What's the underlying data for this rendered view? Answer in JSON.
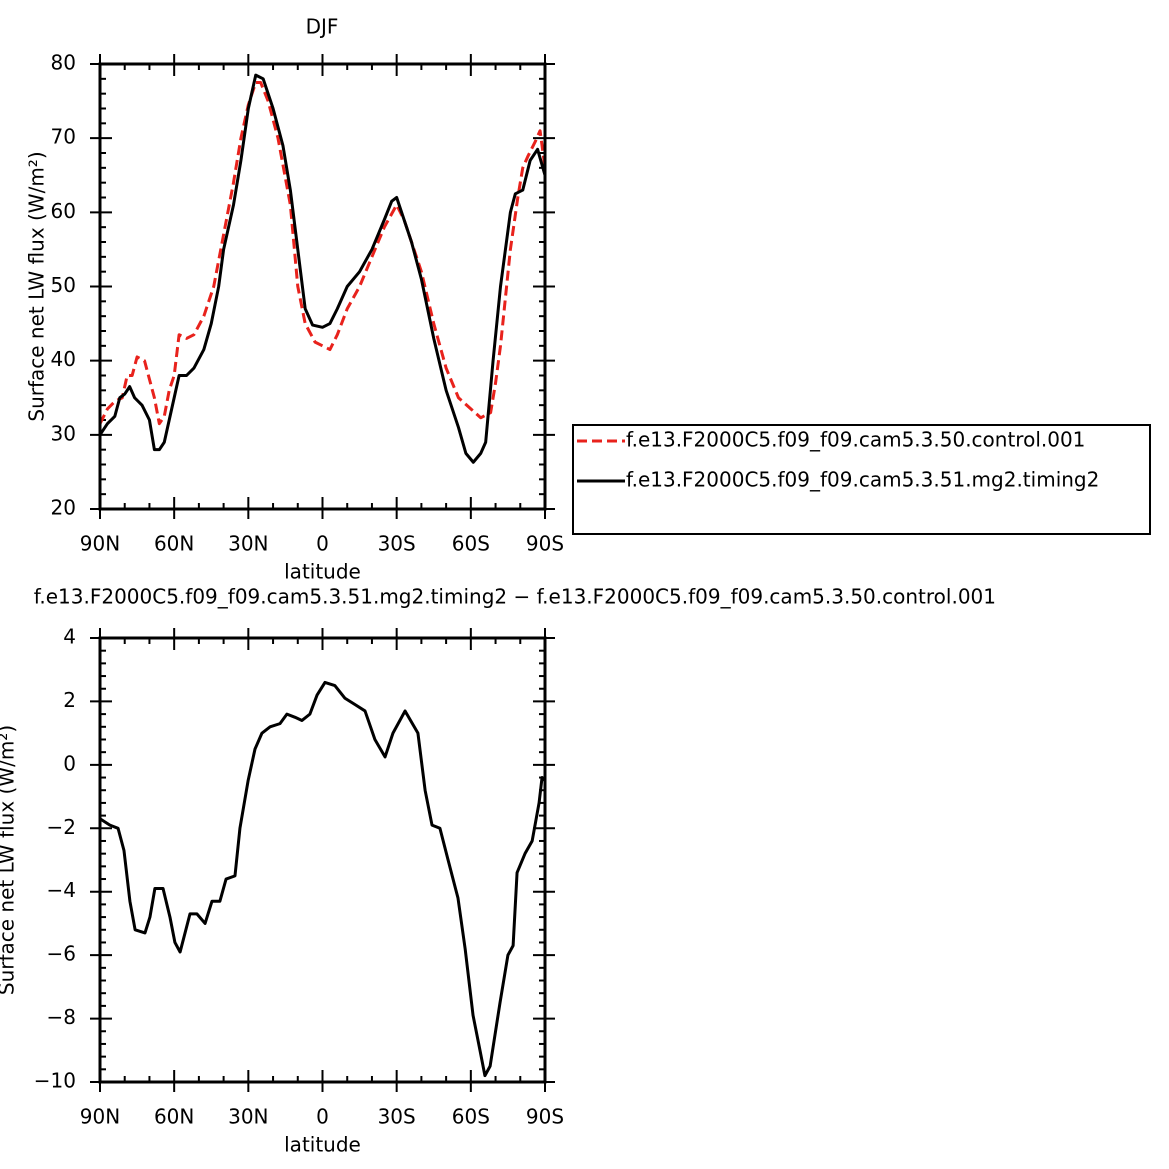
{
  "chart_data": [
    {
      "type": "line",
      "title": "DJF",
      "xlabel": "latitude",
      "ylabel": "Surface net LW flux (W/m²)",
      "xlim": [
        90,
        -90
      ],
      "xticks": [
        {
          "value": 90,
          "label": "90N"
        },
        {
          "value": 60,
          "label": "60N"
        },
        {
          "value": 30,
          "label": "30N"
        },
        0,
        {
          "value": -30,
          "label": "30S"
        },
        {
          "value": -60,
          "label": "60S"
        },
        {
          "value": -90,
          "label": "90S"
        }
      ],
      "ylim": [
        20,
        80
      ],
      "yticks": [
        20,
        30,
        40,
        50,
        60,
        70,
        80
      ],
      "legend": "outside-right",
      "series": [
        {
          "name": "f.e13.F2000C5.f09_f09.cam5.3.50.control.001",
          "color": "#e8221c",
          "dash": true,
          "x": [
            90,
            87,
            84,
            81,
            79,
            77,
            75,
            72,
            70,
            68,
            66,
            64,
            62,
            60,
            58,
            55,
            52,
            48,
            44,
            40,
            36,
            33,
            30,
            27,
            25,
            22,
            18,
            13,
            10,
            7,
            3,
            0,
            -3,
            -6,
            -10,
            -15,
            -20,
            -25,
            -30,
            -33,
            -36,
            -40,
            -45,
            -50,
            -55,
            -60,
            -64,
            -68,
            -70,
            -72,
            -76,
            -79,
            -81,
            -83,
            -86,
            -88,
            -90
          ],
          "values": [
            31.5,
            33.5,
            34.5,
            35,
            38,
            38,
            40.5,
            40,
            37.5,
            35,
            31.5,
            32.5,
            36,
            38,
            43.5,
            43,
            43.5,
            46,
            50,
            57,
            64,
            70,
            74.5,
            77.5,
            77.5,
            75,
            70,
            61,
            50,
            45,
            42.5,
            42,
            41.5,
            43.5,
            47,
            50,
            54,
            58,
            61,
            59,
            56,
            52,
            45,
            39,
            35,
            33.5,
            32.3,
            33,
            37,
            42,
            55,
            62,
            66,
            67.5,
            69.5,
            71,
            66
          ]
        },
        {
          "name": "f.e13.F2000C5.f09_f09.cam5.3.51.mg2.timing2",
          "color": "#000000",
          "dash": false,
          "x": [
            90,
            87,
            84,
            82,
            80,
            78,
            76,
            73,
            70,
            68,
            66,
            64,
            62,
            60,
            58,
            55,
            52,
            48,
            45,
            42,
            40,
            36,
            33,
            30,
            27,
            24,
            20,
            16,
            13,
            10,
            7,
            4,
            0,
            -3,
            -6,
            -10,
            -15,
            -20,
            -25,
            -28,
            -30,
            -33,
            -36,
            -40,
            -45,
            -50,
            -55,
            -58,
            -61,
            -64,
            -66,
            -69,
            -72,
            -76,
            -78,
            -81,
            -84,
            -87,
            -90
          ],
          "values": [
            30,
            31.5,
            32.5,
            35,
            35.5,
            36.5,
            35,
            34,
            32,
            28,
            28,
            29,
            32,
            35,
            38,
            38,
            39,
            41.5,
            45,
            50,
            55,
            61,
            67,
            74,
            78.5,
            78,
            74,
            69,
            63,
            55,
            47,
            44.8,
            44.5,
            45,
            47,
            50,
            52,
            55,
            59,
            61.5,
            62,
            59,
            56,
            51,
            43,
            36,
            31,
            27.5,
            26.3,
            27.5,
            29,
            40,
            50,
            60,
            62.5,
            63,
            67,
            68.5,
            65
          ]
        }
      ]
    },
    {
      "type": "line",
      "title": "f.e13.F2000C5.f09_f09.cam5.3.51.mg2.timing2 − f.e13.F2000C5.f09_f09.cam5.3.50.control.001",
      "xlabel": "latitude",
      "ylabel": "Surface net LW flux (W/m²)",
      "xlim": [
        90,
        -90
      ],
      "xticks": [
        {
          "value": 90,
          "label": "90N"
        },
        {
          "value": 60,
          "label": "60N"
        },
        {
          "value": 30,
          "label": "30N"
        },
        0,
        {
          "value": -30,
          "label": "30S"
        },
        {
          "value": -60,
          "label": "60S"
        },
        {
          "value": -90,
          "label": "90S"
        }
      ],
      "ylim": [
        -10,
        4
      ],
      "yticks": [
        {
          "value": -10,
          "label": "−10"
        },
        {
          "value": -8,
          "label": "−8"
        },
        {
          "value": -6,
          "label": "−6"
        },
        {
          "value": -4,
          "label": "−4"
        },
        {
          "value": -2,
          "label": "−2"
        },
        0,
        2,
        4
      ],
      "series": [
        {
          "color": "#000000",
          "dash": false,
          "x": [
            90,
            86,
            82.7,
            80.3,
            77.9,
            75.8,
            71.8,
            69.8,
            67.8,
            64.5,
            61.7,
            59.7,
            57.6,
            53.6,
            50.8,
            47.5,
            44.7,
            41.5,
            39,
            35.4,
            33.4,
            30.1,
            27.3,
            24.5,
            21.2,
            17.2,
            14.4,
            11.1,
            8.3,
            5.1,
            2.2,
            -1,
            -5,
            -9.1,
            -13.2,
            -17.2,
            -21.2,
            -25.3,
            -28.5,
            -33.4,
            -38.6,
            -41.5,
            -44.3,
            -47.5,
            -50.8,
            -54.8,
            -57.7,
            -60.9,
            -63.7,
            -65.7,
            -67.8,
            -71.8,
            -75,
            -77.1,
            -78.7,
            -81.9,
            -84.8,
            -87.6,
            -88.8,
            -90
          ],
          "values": [
            -1.7,
            -1.9,
            -2.0,
            -2.7,
            -4.3,
            -5.2,
            -5.3,
            -4.8,
            -3.9,
            -3.9,
            -4.8,
            -5.6,
            -5.9,
            -4.7,
            -4.7,
            -5.0,
            -4.3,
            -4.3,
            -3.6,
            -3.5,
            -2,
            -0.5,
            0.5,
            1.0,
            1.2,
            1.3,
            1.6,
            1.5,
            1.4,
            1.6,
            2.2,
            2.6,
            2.5,
            2.1,
            1.9,
            1.7,
            0.8,
            0.25,
            1.0,
            1.7,
            1.0,
            -0.8,
            -1.9,
            -2.0,
            -3,
            -4.2,
            -5.8,
            -7.9,
            -9.0,
            -9.8,
            -9.5,
            -7.5,
            -6.0,
            -5.7,
            -3.4,
            -2.8,
            -2.4,
            -1.2,
            -0.4,
            -0.5
          ]
        }
      ]
    }
  ]
}
